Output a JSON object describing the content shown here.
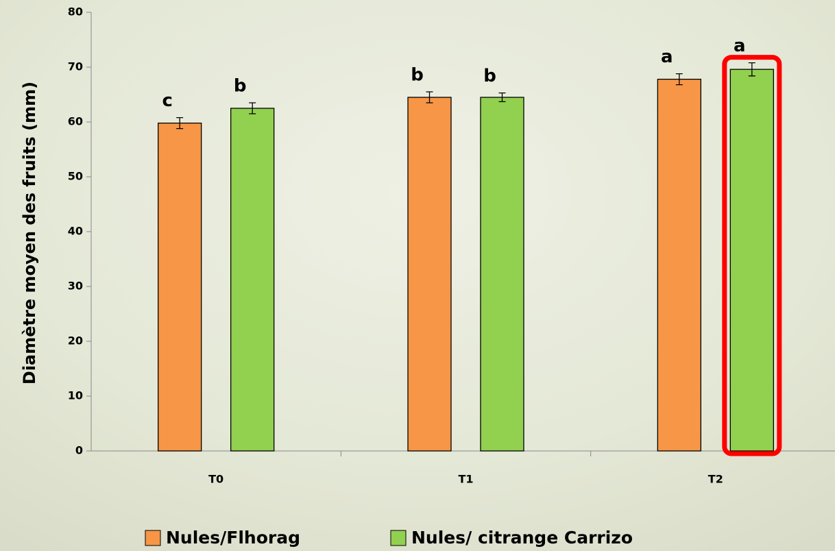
{
  "chart_data": {
    "type": "bar",
    "y_label": "Diamètre moyen des fruits (mm)",
    "categories": [
      "T0",
      "T1",
      "T2"
    ],
    "series": [
      {
        "name": "Nules/Flhorag",
        "color": "#f79646",
        "values": [
          59.8,
          64.5,
          67.8
        ],
        "errors": [
          1.0,
          1.0,
          1.0
        ],
        "letters": [
          "c",
          "b",
          "a"
        ]
      },
      {
        "name": "Nules/ citrange Carrizo",
        "color": "#92d050",
        "values": [
          62.5,
          64.5,
          69.6
        ],
        "errors": [
          1.0,
          0.8,
          1.2
        ],
        "letters": [
          "b",
          "b",
          "a"
        ]
      }
    ],
    "ylim": [
      0,
      80
    ],
    "yticks": [
      0,
      10,
      20,
      30,
      40,
      50,
      60,
      70,
      80
    ],
    "grid": false
  }
}
